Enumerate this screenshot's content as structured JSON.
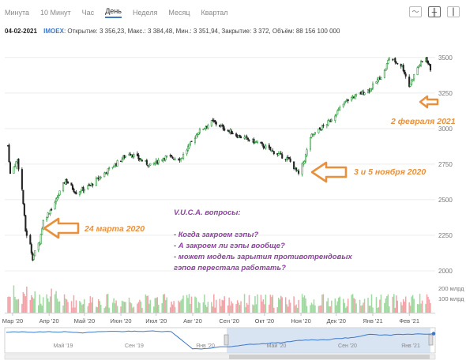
{
  "tabs": [
    "Минута",
    "10 Минут",
    "Час",
    "День",
    "Неделя",
    "Месяц",
    "Квартал"
  ],
  "active_tab": "День",
  "toolbar_icons": [
    "line-chart-icon",
    "bar-chart-icon",
    "candle-chart-icon"
  ],
  "info": {
    "date": "04-02-2021",
    "ticker": "IMOEX",
    "stats": ": Открытие: 3 356,23, Макс.: 3 384,48, Мин.: 3 351,94, Закрытие: 3 372, Объём: 88 156 100 000"
  },
  "annotations": [
    {
      "text": "2 февраля 2021",
      "color": "#e8903c"
    },
    {
      "text": "3 и 5 ноября 2020",
      "color": "#e8903c"
    },
    {
      "text": "24 марта 2020",
      "color": "#e8903c"
    }
  ],
  "questions": [
    "V.U.C.A. вопросы:",
    "",
    "- Когда закроем гэпы?",
    "- А закроем ли гэпы вообще?",
    "- может модель зарытия противотрендовых",
    "гэпов перестала работать?"
  ],
  "colors": {
    "up": "#2e9b3e",
    "down": "#222222",
    "volume": "#f4a2a8",
    "volume_up": "#9fd8a0",
    "arrow": "#e8903c",
    "question": "#8e3fa2",
    "navigator": "#3c78c8"
  },
  "chart_data": {
    "type": "candlestick",
    "ticker": "IMOEX",
    "price_ticks": [
      2000,
      2250,
      2500,
      2750,
      3000,
      3250,
      3500
    ],
    "ylim": [
      1950,
      3560
    ],
    "volume_ticks": [
      "200 млрд",
      "100 млрд"
    ],
    "x_ticks": [
      "Мар '20",
      "Апр '20",
      "Май '20",
      "Июн '20",
      "Июл '20",
      "Авг '20",
      "Сен '20",
      "Окт '20",
      "Ноя '20",
      "Дек '20",
      "Янв '21",
      "Фев '21"
    ],
    "anchors": [
      {
        "date": "2020-02-26",
        "value": 2880
      },
      {
        "date": "2020-02-28",
        "value": 2680
      },
      {
        "date": "2020-03-05",
        "value": 2780
      },
      {
        "date": "2020-03-09",
        "value": 2570
      },
      {
        "date": "2020-03-12",
        "value": 2280
      },
      {
        "date": "2020-03-16",
        "value": 2180
      },
      {
        "date": "2020-03-18",
        "value": 2090
      },
      {
        "date": "2020-03-24",
        "value": 2210
      },
      {
        "date": "2020-03-27",
        "value": 2350
      },
      {
        "date": "2020-04-06",
        "value": 2480
      },
      {
        "date": "2020-04-15",
        "value": 2640
      },
      {
        "date": "2020-04-24",
        "value": 2550
      },
      {
        "date": "2020-05-06",
        "value": 2600
      },
      {
        "date": "2020-05-20",
        "value": 2700
      },
      {
        "date": "2020-06-08",
        "value": 2830
      },
      {
        "date": "2020-06-26",
        "value": 2740
      },
      {
        "date": "2020-07-08",
        "value": 2800
      },
      {
        "date": "2020-07-22",
        "value": 2790
      },
      {
        "date": "2020-08-06",
        "value": 2980
      },
      {
        "date": "2020-08-18",
        "value": 3050
      },
      {
        "date": "2020-08-28",
        "value": 3000
      },
      {
        "date": "2020-09-08",
        "value": 2950
      },
      {
        "date": "2020-09-25",
        "value": 2900
      },
      {
        "date": "2020-10-08",
        "value": 2840
      },
      {
        "date": "2020-10-22",
        "value": 2780
      },
      {
        "date": "2020-10-30",
        "value": 2680
      },
      {
        "date": "2020-11-04",
        "value": 2780
      },
      {
        "date": "2020-11-09",
        "value": 2940
      },
      {
        "date": "2020-11-25",
        "value": 3050
      },
      {
        "date": "2020-12-10",
        "value": 3200
      },
      {
        "date": "2020-12-30",
        "value": 3280
      },
      {
        "date": "2021-01-11",
        "value": 3400
      },
      {
        "date": "2021-01-15",
        "value": 3500
      },
      {
        "date": "2021-01-26",
        "value": 3440
      },
      {
        "date": "2021-02-01",
        "value": 3300
      },
      {
        "date": "2021-02-08",
        "value": 3430
      },
      {
        "date": "2021-02-15",
        "value": 3500
      },
      {
        "date": "2021-02-19",
        "value": 3420
      }
    ],
    "gaps": [
      {
        "label": "2 февраля 2021",
        "value": 3300
      },
      {
        "label": "3 и 5 ноября 2020",
        "value": 2760
      },
      {
        "label": "24 марта 2020",
        "value": 2280
      }
    ],
    "navigator_x_ticks": [
      "Май '19",
      "Сен '19",
      "Янв '20",
      "Май '20",
      "Сен '20",
      "Янв '21"
    ]
  }
}
